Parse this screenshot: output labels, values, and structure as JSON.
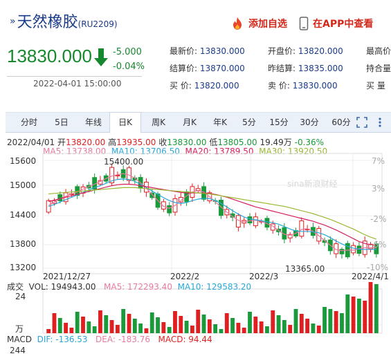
{
  "header": {
    "title": "天然橡胶",
    "code": "(RU2209)",
    "add_watch_label": "添加自选",
    "app_view_label": "在APP中查看"
  },
  "quote": {
    "price": "13830.000",
    "change": "-5.000",
    "change_pct": "-0.04%",
    "time": "2022-04-01 15:00:00"
  },
  "fields": {
    "latest_label": "最新价:",
    "latest": "13830.000",
    "open_label": "开盘价:",
    "open": "13820.000",
    "high_label": "最高价",
    "settle_label": "结算价:",
    "settle": "13870.000",
    "prev_settle_label": "昨结算:",
    "prev_settle": "13835.000",
    "oi_label": "持合量",
    "bid_label": "买  价:",
    "bid": "13820.000",
    "ask_label": "卖  价:",
    "ask": "13830.000",
    "buy_vol_label": "买  量"
  },
  "tabs": [
    "分时",
    "5日",
    "年线",
    "日K",
    "周K",
    "月K",
    "年K",
    "5分",
    "15分",
    "30分",
    "60分"
  ],
  "active_tab": "日K",
  "ohlc_line": {
    "date": "2022/04/01",
    "open_label": "开",
    "open": "13820.00",
    "high_label": "高",
    "high": "13935.00",
    "close_label": "收",
    "close": "13830.00",
    "low_label": "低",
    "low": "13805.00",
    "volume": "19.49万",
    "pct": "-0.36%"
  },
  "ma_line": {
    "ma5": "MA5: 13738.00",
    "ma10": "MA10: 13706.50",
    "ma20": "MA20: 13789.50",
    "ma30": "MA30: 13920.50"
  },
  "vol_line": {
    "label": "成交",
    "vol": "VOL: 194943.00",
    "ma5": "MA5: 172293.40",
    "ma10": "MA10: 129583.20"
  },
  "macd_line": {
    "label": "MACD",
    "dif": "DIF: -136.53",
    "dea": "DEA: -183.76",
    "macd": "MACD: 94.44"
  },
  "axes": {
    "price_left": [
      "15600",
      "15000",
      "14400",
      "13800",
      "13200"
    ],
    "pct_right": [
      "7%",
      "3%",
      "-2%",
      "-6%",
      "-10%"
    ],
    "dates": [
      "2021/12/27",
      "2022/2",
      "2022/3",
      "2022/4/1"
    ],
    "vol_top": "24",
    "vol_unit": "万",
    "macd_bottom": "244"
  },
  "watermark": "sina新浪财经",
  "colors": {
    "up": "#e02020",
    "down": "#1a9a3a",
    "ma5": "#e87aa0",
    "ma10": "#28a8d8",
    "ma20": "#d81e5b",
    "ma30": "#99b833"
  },
  "chart_data": {
    "type": "candlestick",
    "price_range": [
      13200,
      15700
    ],
    "series": [
      {
        "name": "MA5",
        "values": [
          14620,
          14690,
          14760,
          14810,
          14860,
          14900,
          14960,
          15010,
          15060,
          15120,
          15180,
          15230,
          15260,
          15280,
          15250,
          15190,
          15090,
          14980,
          14850,
          14720,
          14600,
          14560,
          14620,
          14720,
          14820,
          14900,
          14930,
          14900,
          14800,
          14690,
          14590,
          14480,
          14390,
          14310,
          14280,
          14300,
          14310,
          14290,
          14240,
          14190,
          14100,
          14020,
          14000,
          14040,
          14120,
          14140,
          14080,
          13990,
          13890,
          13790,
          13700,
          13680,
          13690,
          13690,
          13720,
          13740,
          13745,
          13738
        ]
      },
      {
        "name": "MA10",
        "values": [
          14600,
          14640,
          14690,
          14740,
          14790,
          14840,
          14890,
          14940,
          14990,
          15030,
          15080,
          15130,
          15160,
          15170,
          15160,
          15120,
          15060,
          14990,
          14920,
          14850,
          14780,
          14720,
          14680,
          14660,
          14680,
          14720,
          14750,
          14770,
          14760,
          14720,
          14660,
          14590,
          14510,
          14440,
          14380,
          14340,
          14320,
          14300,
          14280,
          14260,
          14230,
          14180,
          14130,
          14090,
          14080,
          14080,
          14070,
          14050,
          14010,
          13950,
          13880,
          13820,
          13770,
          13730,
          13710,
          13705,
          13706,
          13706
        ]
      },
      {
        "name": "MA20",
        "values": [
          14700,
          14730,
          14760,
          14790,
          14820,
          14850,
          14880,
          14910,
          14940,
          14970,
          15000,
          15030,
          15050,
          15060,
          15060,
          15050,
          15030,
          15010,
          14990,
          14970,
          14950,
          14930,
          14910,
          14890,
          14880,
          14880,
          14880,
          14880,
          14870,
          14850,
          14820,
          14790,
          14750,
          14710,
          14670,
          14630,
          14590,
          14560,
          14530,
          14500,
          14470,
          14440,
          14410,
          14380,
          14350,
          14320,
          14290,
          14250,
          14210,
          14160,
          14110,
          14050,
          13990,
          13930,
          13870,
          13830,
          13800,
          13790
        ]
      },
      {
        "name": "MA30",
        "values": [
          14860,
          14870,
          14880,
          14890,
          14900,
          14910,
          14920,
          14930,
          14940,
          14950,
          14960,
          14970,
          14980,
          14990,
          14990,
          14990,
          14980,
          14970,
          14960,
          14950,
          14940,
          14930,
          14920,
          14910,
          14900,
          14890,
          14880,
          14870,
          14860,
          14840,
          14820,
          14800,
          14780,
          14760,
          14740,
          14720,
          14700,
          14680,
          14660,
          14640,
          14620,
          14600,
          14570,
          14540,
          14510,
          14480,
          14450,
          14410,
          14370,
          14330,
          14280,
          14230,
          14180,
          14130,
          14070,
          14010,
          13960,
          13920
        ]
      }
    ],
    "annotations": [
      {
        "text": "15400.00",
        "kind": "high"
      },
      {
        "text": "13365.00",
        "kind": "low"
      }
    ]
  }
}
